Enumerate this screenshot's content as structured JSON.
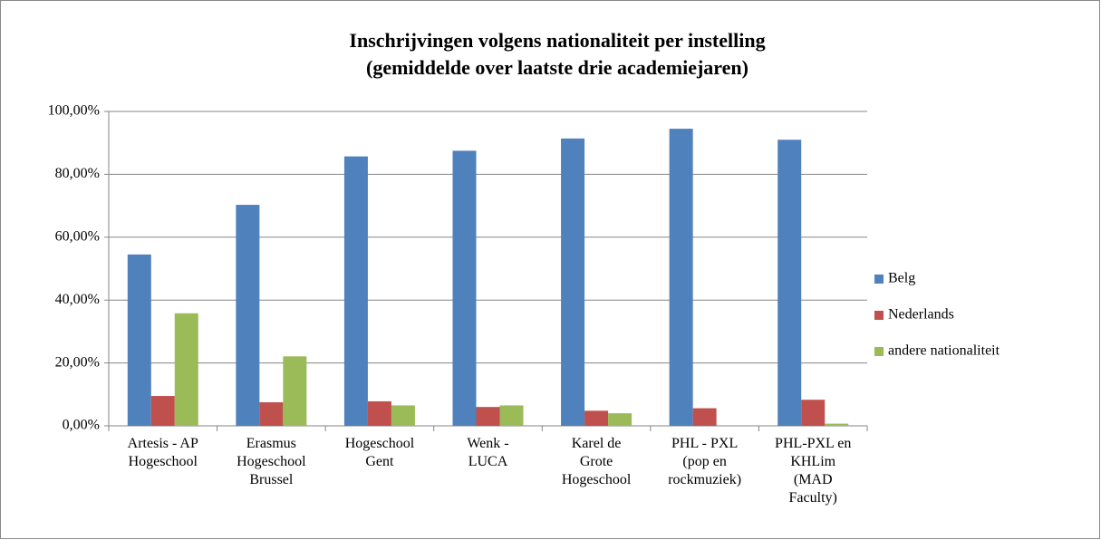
{
  "chart_data": {
    "type": "bar",
    "title": "Inschrijvingen volgens nationaliteit per instelling\n(gemiddelde over laatste drie academiejaren)",
    "categories": [
      "Artesis - AP\nHogeschool",
      "Erasmus\nHogeschool\nBrussel",
      "Hogeschool\nGent",
      "Wenk -\nLUCA",
      "Karel de\nGrote\nHogeschool",
      "PHL - PXL\n(pop en\nrockmuziek)",
      "PHL-PXL en\nKHLim\n(MAD\nFaculty)"
    ],
    "series": [
      {
        "name": "Belg",
        "color": "#4f81bd",
        "values": [
          54.5,
          70.3,
          85.7,
          87.5,
          91.4,
          94.5,
          91.0
        ]
      },
      {
        "name": "Nederlands",
        "color": "#c0504d",
        "values": [
          9.5,
          7.5,
          7.8,
          6.0,
          4.8,
          5.6,
          8.3
        ]
      },
      {
        "name": "andere nationaliteit",
        "color": "#9bbb59",
        "values": [
          35.8,
          22.1,
          6.5,
          6.5,
          4.0,
          0,
          0.7
        ]
      }
    ],
    "ylim": [
      0,
      100
    ],
    "yticks": [
      {
        "value": 0,
        "label": "0,00%"
      },
      {
        "value": 20,
        "label": "20,00%"
      },
      {
        "value": 40,
        "label": "40,00%"
      },
      {
        "value": 60,
        "label": "60,00%"
      },
      {
        "value": 80,
        "label": "80,00%"
      },
      {
        "value": 100,
        "label": "100,00%"
      }
    ],
    "grid": true,
    "legend": "right"
  }
}
